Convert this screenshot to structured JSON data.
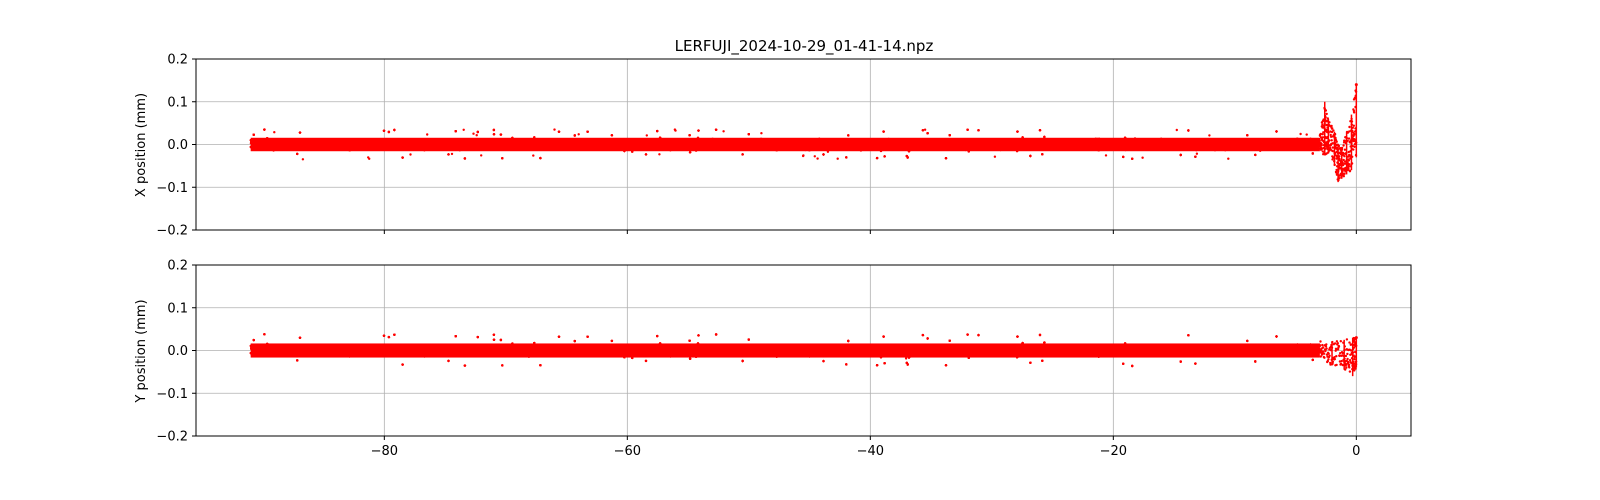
{
  "chart_data": {
    "type": "scatter",
    "title": "LERFUJI_2024-10-29_01-41-14.npz",
    "grid": true,
    "xlim": [
      -95.5,
      4.5
    ],
    "x_ticks": [
      -80,
      -60,
      -40,
      -20,
      0
    ],
    "x_range": [
      -91,
      0
    ],
    "color": "#ff0000",
    "panels": [
      {
        "ylabel": "X position (mm)",
        "ylim": [
          -0.2,
          0.2
        ],
        "y_ticks": [
          -0.2,
          -0.1,
          0.0,
          0.1,
          0.2
        ],
        "band": {
          "x_start": -91,
          "x_end": -3.0,
          "center": 0.0,
          "half_width": 0.021,
          "outlier_extent": 0.035
        },
        "features": [
          {
            "x": -2.6,
            "y_min": -0.025,
            "y_max": 0.1
          },
          {
            "x": -2.3,
            "y_min": -0.02,
            "y_max": 0.06
          },
          {
            "x": -1.8,
            "y_min": -0.05,
            "y_max": 0.03
          },
          {
            "x": -1.5,
            "y_min": -0.088,
            "y_max": 0.0
          },
          {
            "x": -1.2,
            "y_min": -0.08,
            "y_max": -0.01
          },
          {
            "x": -0.8,
            "y_min": -0.07,
            "y_max": 0.03
          },
          {
            "x": -0.4,
            "y_min": -0.06,
            "y_max": 0.07
          },
          {
            "x": 0.0,
            "y_min": -0.03,
            "y_max": 0.14
          }
        ]
      },
      {
        "ylabel": "Y position (mm)",
        "ylim": [
          -0.2,
          0.2
        ],
        "y_ticks": [
          -0.2,
          -0.1,
          0.0,
          0.1,
          0.2
        ],
        "band": {
          "x_start": -91,
          "x_end": -3.0,
          "center": 0.0,
          "half_width": 0.022,
          "outlier_extent": 0.038
        },
        "features": [
          {
            "x": -2.0,
            "y_min": -0.035,
            "y_max": 0.02
          },
          {
            "x": -1.0,
            "y_min": -0.045,
            "y_max": 0.025
          },
          {
            "x": -0.3,
            "y_min": -0.06,
            "y_max": 0.03
          },
          {
            "x": 0.0,
            "y_min": -0.04,
            "y_max": 0.03
          }
        ]
      }
    ]
  }
}
